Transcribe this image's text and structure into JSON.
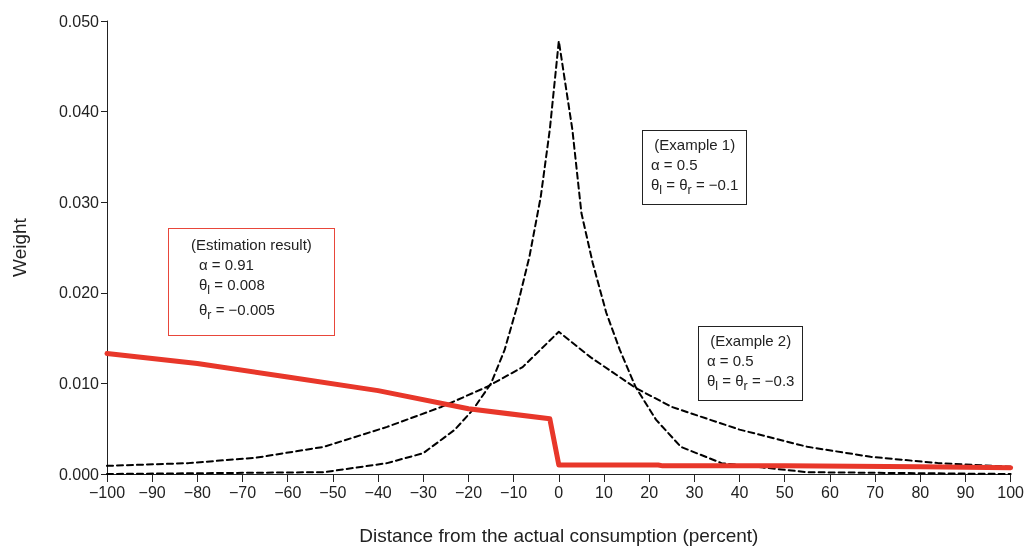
{
  "chart_data": {
    "type": "line",
    "xlabel": "Distance from the actual consumption (percent)",
    "ylabel": "Weight",
    "xlim": [
      -100,
      100
    ],
    "xticks": [
      {
        "value": -100,
        "label": "−100"
      },
      {
        "value": -90,
        "label": "−90"
      },
      {
        "value": -80,
        "label": "−80"
      },
      {
        "value": -70,
        "label": "−70"
      },
      {
        "value": -60,
        "label": "−60"
      },
      {
        "value": -50,
        "label": "−50"
      },
      {
        "value": -40,
        "label": "−40"
      },
      {
        "value": -30,
        "label": "−30"
      },
      {
        "value": -20,
        "label": "−20"
      },
      {
        "value": -10,
        "label": "−10"
      },
      0,
      10,
      20,
      30,
      40,
      50,
      60,
      70,
      80,
      90,
      100
    ],
    "ylim": [
      0,
      0.05
    ],
    "yticks": [
      {
        "value": 0,
        "label": "0.000"
      },
      {
        "value": 0.01,
        "label": "0.010"
      },
      {
        "value": 0.02,
        "label": "0.020"
      },
      {
        "value": 0.03,
        "label": "0.030"
      },
      {
        "value": 0.04,
        "label": "0.040"
      },
      {
        "value": 0.05,
        "label": "0.050"
      }
    ],
    "grid": false,
    "marker": "none",
    "series": [
      {
        "color": "#e8372a",
        "line_style": "solid",
        "x": [
          -100,
          -80,
          -60,
          -40,
          -20,
          -2,
          0,
          22,
          23,
          50,
          80,
          100
        ],
        "values": [
          0.0133,
          0.0122,
          0.0107,
          0.0092,
          0.0072,
          0.0061,
          0.001,
          0.001,
          0.0009,
          0.0009,
          0.0008,
          0.0007
        ]
      },
      {
        "color": "#000000",
        "line_style": "dashed",
        "x": [
          -100,
          -52,
          -38,
          -30,
          -23,
          -19,
          -15,
          -12,
          -9,
          -6.5,
          -4,
          -2,
          0,
          3,
          5,
          7.5,
          10.5,
          13.5,
          17,
          21.5,
          27,
          36,
          55,
          100
        ],
        "values": [
          0,
          0.0002,
          0.0012,
          0.0023,
          0.0049,
          0.0071,
          0.01,
          0.0137,
          0.0189,
          0.024,
          0.0306,
          0.038,
          0.0478,
          0.038,
          0.0288,
          0.0233,
          0.0178,
          0.0137,
          0.0096,
          0.006,
          0.003,
          0.0012,
          0.0002,
          0
        ]
      },
      {
        "color": "#000000",
        "line_style": "dashed",
        "x": [
          -100,
          -82,
          -67,
          -52,
          -38,
          -26,
          -16,
          -8,
          0,
          7,
          17,
          25,
          40,
          55,
          69,
          84,
          100
        ],
        "values": [
          0.0009,
          0.0012,
          0.0018,
          0.003,
          0.0052,
          0.0074,
          0.0096,
          0.0118,
          0.0157,
          0.0129,
          0.0095,
          0.0074,
          0.0049,
          0.003,
          0.0019,
          0.0012,
          0.0008
        ]
      }
    ],
    "annotations": [
      "(Estimation result)\nα = 0.91\nθ$_{l}$ = 0.008\nθ$_{r}$ = −0.005",
      "(Example 1)\nα = 0.5\nθ$_{l}$ = θ$_{r}$ = −0.1",
      "(Example 2)\nα = 0.5\nθ$_{l}$ = θ$_{r}$ = −0.3"
    ]
  }
}
